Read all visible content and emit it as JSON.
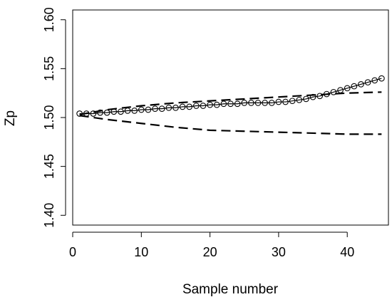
{
  "chart_data": {
    "type": "line",
    "title": "",
    "xlabel": "Sample number",
    "ylabel": "Zp",
    "xlim": [
      0,
      46
    ],
    "ylim": [
      1.39,
      1.61
    ],
    "x_ticks": [
      0,
      10,
      20,
      30,
      40
    ],
    "x_tick_labels": [
      "0",
      "10",
      "20",
      "30",
      "40"
    ],
    "y_ticks": [
      1.4,
      1.45,
      1.5,
      1.55,
      1.6
    ],
    "y_tick_labels": [
      "1.40",
      "1.45",
      "1.50",
      "1.55",
      "1.60"
    ],
    "grid": false,
    "legend": "none",
    "series": [
      {
        "style": "line-with-open-circles",
        "color": "#000000",
        "x": [
          1,
          2,
          3,
          4,
          5,
          6,
          7,
          8,
          9,
          10,
          11,
          12,
          13,
          14,
          15,
          16,
          17,
          18,
          19,
          20,
          21,
          22,
          23,
          24,
          25,
          26,
          27,
          28,
          29,
          30,
          31,
          32,
          33,
          34,
          35,
          36,
          37,
          38,
          39,
          40,
          41,
          42,
          43,
          44,
          45
        ],
        "y": [
          1.504,
          1.504,
          1.504,
          1.505,
          1.505,
          1.506,
          1.506,
          1.507,
          1.507,
          1.508,
          1.508,
          1.509,
          1.509,
          1.51,
          1.51,
          1.511,
          1.511,
          1.512,
          1.512,
          1.513,
          1.513,
          1.514,
          1.514,
          1.514,
          1.515,
          1.515,
          1.515,
          1.515,
          1.515,
          1.516,
          1.516,
          1.517,
          1.518,
          1.519,
          1.521,
          1.522,
          1.524,
          1.526,
          1.528,
          1.53,
          1.532,
          1.534,
          1.536,
          1.538,
          1.54
        ]
      },
      {
        "style": "dashed",
        "color": "#000000",
        "x": [
          1,
          5,
          10,
          15,
          20,
          25,
          30,
          35,
          40,
          45
        ],
        "y": [
          1.503,
          1.508,
          1.512,
          1.515,
          1.517,
          1.519,
          1.521,
          1.523,
          1.525,
          1.526
        ]
      },
      {
        "style": "dashed",
        "color": "#000000",
        "x": [
          1,
          5,
          10,
          15,
          20,
          25,
          30,
          35,
          40,
          45
        ],
        "y": [
          1.502,
          1.498,
          1.494,
          1.49,
          1.487,
          1.486,
          1.485,
          1.484,
          1.483,
          1.483
        ]
      }
    ]
  }
}
